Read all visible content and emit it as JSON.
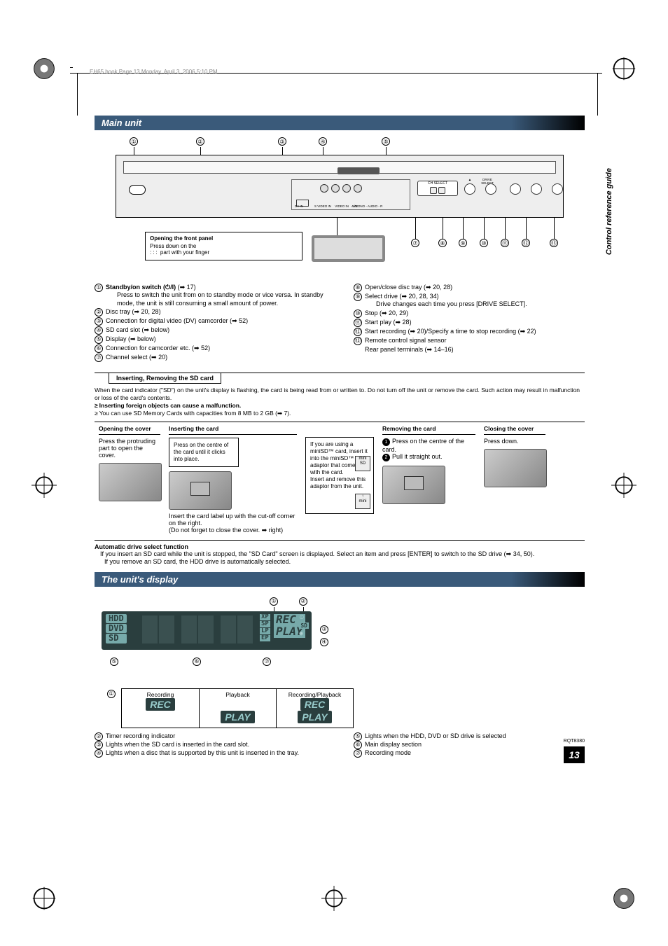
{
  "file_path": "EH65.book  Page 13  Monday, April 3, 2006  5:10 PM",
  "side_tab": "Control reference guide",
  "page_number": "13",
  "model_code": "RQT8380",
  "main_unit": {
    "title": "Main unit",
    "front_panel": {
      "header": "Opening the front panel",
      "line1": "Press down on the",
      "line2": "part with your finger",
      "dots": ":::"
    },
    "panel_labels": {
      "dv_in": "DV IN",
      "svideo": "S VIDEO IN",
      "video": "VIDEO IN",
      "audio": "L/MONO - AUDIO - R",
      "av3": "AV3",
      "drive_select": "DRIVE SELECT",
      "hdd_dvd_sd": "HDD DVD SD",
      "ch_select": "CH SELECT"
    },
    "left_items": [
      {
        "n": "①",
        "txt": "<b>Standby/on switch (⏻/I)</b> (➡ 17)<span class=\"sub\">Press to switch the unit from on to standby mode or vice versa. In standby mode, the unit is still consuming a small amount of power.</span>"
      },
      {
        "n": "②",
        "txt": "Disc tray (➡ 20, 28)"
      },
      {
        "n": "③",
        "txt": "Connection for digital video (DV) camcorder (➡ 52)"
      },
      {
        "n": "④",
        "txt": "SD card slot (➡ below)"
      },
      {
        "n": "⑤",
        "txt": "Display (➡ below)"
      },
      {
        "n": "⑥",
        "txt": "Connection for camcorder etc. (➡ 52)"
      },
      {
        "n": "⑦",
        "txt": "Channel select (➡ 20)"
      }
    ],
    "right_items": [
      {
        "n": "⑧",
        "txt": "Open/close disc tray (➡ 20, 28)"
      },
      {
        "n": "⑨",
        "txt": "Select drive (➡ 20, 28, 34)<span class=\"sub\">Drive changes each time you press [DRIVE SELECT].</span>"
      },
      {
        "n": "⑩",
        "txt": "Stop (➡ 20, 29)"
      },
      {
        "n": "⑪",
        "txt": "Start play (➡ 28)"
      },
      {
        "n": "⑫",
        "txt": "Start recording (➡ 20)/Specify a time to stop recording (➡ 22)"
      },
      {
        "n": "⑬",
        "txt": "Remote control signal sensor"
      },
      {
        "n": "",
        "txt": "Rear panel terminals (➡ 14–16)"
      }
    ]
  },
  "sd": {
    "title": "Inserting, Removing the SD card",
    "desc1": "When the card indicator (\"SD\") on the unit's display is flashing, the card is being read from or written to. Do not turn off the unit or remove the card. Such action may result in malfunction or loss of the card's contents.",
    "desc2": "Inserting foreign objects can cause a malfunction.",
    "desc3": "You can use SD Memory Cards with capacities from 8 MB to 2 GB (➡ 7).",
    "cols": {
      "open_hdr": "Opening the cover",
      "open_txt": "Press the protruding part to open the cover.",
      "insert_hdr": "Inserting the card",
      "insert_txt": "Press on the centre of the card until it clicks into place.",
      "insert_note": "Insert the card label up with the cut-off corner on the right.\n(Do not forget to close the cover. ➡ right)",
      "mini_txt": "If you are using a miniSD™ card, insert it into the miniSD™ card adaptor that comes with the card.\nInsert and remove this adaptor from the unit.",
      "remove_hdr": "Removing the card",
      "remove_1": "Press on the centre of the card.",
      "remove_2": "Pull it straight out.",
      "close_hdr": "Closing the cover",
      "close_txt": "Press down."
    },
    "auto": {
      "hdr": "Automatic drive select function",
      "l1": "If you insert an SD card while the unit is stopped, the \"SD Card\" screen is displayed. Select an item and press [ENTER] to switch to the SD drive (➡ 34, 50).",
      "l2": "If you remove an SD card, the HDD drive is automatically selected."
    }
  },
  "display": {
    "title": "The unit's display",
    "labels": {
      "hdd": "HDD",
      "dvd": "DVD",
      "sd_left": "SD",
      "xp": "XP",
      "sp": "SP",
      "lp": "LP",
      "ep": "EP",
      "rec": "REC",
      "play": "PLAY",
      "sd": "SD"
    },
    "playback_table": {
      "h1": "Recording",
      "h2": "Playback",
      "h3": "Recording/Playback",
      "rec": "REC",
      "play": "PLAY"
    },
    "left_items": [
      {
        "n": "②",
        "txt": "Timer recording indicator"
      },
      {
        "n": "③",
        "txt": "Lights when the SD card is inserted in the card slot."
      },
      {
        "n": "④",
        "txt": "Lights when a disc that is supported by this unit is inserted in the tray."
      }
    ],
    "right_items": [
      {
        "n": "⑤",
        "txt": "Lights when the HDD, DVD or SD drive is selected"
      },
      {
        "n": "⑥",
        "txt": "Main display section"
      },
      {
        "n": "⑦",
        "txt": "Recording mode"
      }
    ]
  }
}
